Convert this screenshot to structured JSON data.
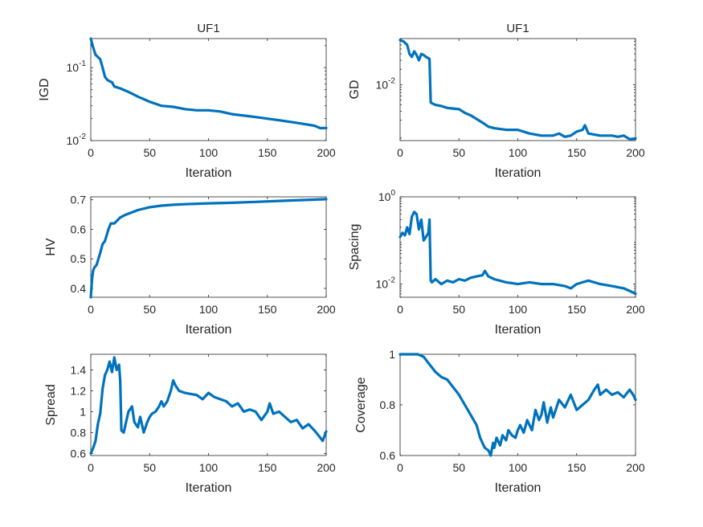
{
  "colors": {
    "series": "#0072bd",
    "axis": "#262626",
    "background": "#ffffff"
  },
  "chart_data": [
    {
      "id": "igd",
      "type": "line",
      "title": "UF1",
      "xlabel": "Iteration",
      "ylabel": "IGD",
      "yscale": "log",
      "xlim": [
        0,
        200
      ],
      "ylim": [
        0.01,
        0.25
      ],
      "xticks": [
        0,
        50,
        100,
        150,
        200
      ],
      "yticks": [
        {
          "v": 0.1,
          "base": "10",
          "exp": "-1"
        },
        {
          "v": 0.01,
          "base": "10",
          "exp": "-2"
        }
      ],
      "series": [
        {
          "name": "IGD",
          "x": [
            0,
            2,
            4,
            6,
            8,
            10,
            12,
            14,
            16,
            18,
            20,
            25,
            30,
            35,
            40,
            45,
            50,
            55,
            60,
            70,
            80,
            90,
            100,
            110,
            120,
            130,
            140,
            150,
            160,
            170,
            180,
            190,
            195,
            200
          ],
          "y": [
            0.25,
            0.19,
            0.15,
            0.14,
            0.13,
            0.1,
            0.075,
            0.068,
            0.065,
            0.063,
            0.055,
            0.052,
            0.048,
            0.044,
            0.04,
            0.037,
            0.034,
            0.032,
            0.03,
            0.029,
            0.027,
            0.026,
            0.026,
            0.025,
            0.023,
            0.022,
            0.021,
            0.02,
            0.019,
            0.018,
            0.017,
            0.016,
            0.0148,
            0.0149
          ]
        }
      ]
    },
    {
      "id": "gd",
      "type": "line",
      "title": "UF1",
      "xlabel": "Iteration",
      "ylabel": "GD",
      "yscale": "log",
      "xlim": [
        0,
        200
      ],
      "ylim": [
        0.0008,
        0.08
      ],
      "xticks": [
        0,
        50,
        100,
        150,
        200
      ],
      "yticks": [
        {
          "v": 0.01,
          "base": "10",
          "exp": "-2"
        }
      ],
      "series": [
        {
          "name": "GD",
          "x": [
            0,
            3,
            6,
            8,
            10,
            12,
            14,
            16,
            18,
            20,
            22,
            25,
            26,
            27,
            30,
            35,
            40,
            45,
            50,
            55,
            60,
            70,
            75,
            80,
            90,
            100,
            110,
            120,
            130,
            135,
            140,
            145,
            150,
            155,
            157,
            160,
            170,
            180,
            185,
            190,
            195,
            200
          ],
          "y": [
            0.075,
            0.07,
            0.06,
            0.04,
            0.035,
            0.045,
            0.038,
            0.03,
            0.04,
            0.038,
            0.035,
            0.032,
            0.0045,
            0.0043,
            0.004,
            0.0038,
            0.0035,
            0.0034,
            0.0033,
            0.0028,
            0.0025,
            0.0018,
            0.0015,
            0.0014,
            0.0013,
            0.0013,
            0.0011,
            0.001,
            0.001,
            0.0011,
            0.00095,
            0.001,
            0.0012,
            0.0013,
            0.0016,
            0.0011,
            0.001,
            0.001,
            0.00095,
            0.001,
            0.00085,
            0.00088
          ]
        }
      ]
    },
    {
      "id": "hv",
      "type": "line",
      "title": "",
      "xlabel": "Iteration",
      "ylabel": "HV",
      "yscale": "linear",
      "xlim": [
        0,
        200
      ],
      "ylim": [
        0.37,
        0.71
      ],
      "xticks": [
        0,
        50,
        100,
        150,
        200
      ],
      "yticks": [
        {
          "v": 0.4,
          "t": "0.4"
        },
        {
          "v": 0.5,
          "t": "0.5"
        },
        {
          "v": 0.6,
          "t": "0.6"
        },
        {
          "v": 0.7,
          "t": "0.7"
        }
      ],
      "series": [
        {
          "name": "HV",
          "x": [
            0,
            1,
            2,
            3,
            5,
            8,
            10,
            12,
            15,
            17,
            20,
            25,
            30,
            40,
            50,
            60,
            70,
            80,
            100,
            120,
            140,
            160,
            180,
            200
          ],
          "y": [
            0.37,
            0.43,
            0.46,
            0.47,
            0.48,
            0.52,
            0.55,
            0.56,
            0.6,
            0.62,
            0.62,
            0.64,
            0.65,
            0.665,
            0.675,
            0.68,
            0.683,
            0.685,
            0.688,
            0.69,
            0.693,
            0.696,
            0.699,
            0.702
          ]
        }
      ]
    },
    {
      "id": "spacing",
      "type": "line",
      "title": "",
      "xlabel": "Iteration",
      "ylabel": "Spacing",
      "yscale": "log",
      "xlim": [
        0,
        200
      ],
      "ylim": [
        0.005,
        1
      ],
      "xticks": [
        0,
        50,
        100,
        150,
        200
      ],
      "yticks": [
        {
          "v": 1,
          "base": "10",
          "exp": "0"
        },
        {
          "v": 0.01,
          "base": "10",
          "exp": "-2"
        }
      ],
      "series": [
        {
          "name": "Spacing",
          "x": [
            0,
            2,
            4,
            6,
            8,
            10,
            12,
            14,
            16,
            18,
            20,
            22,
            24,
            25,
            26,
            27,
            30,
            35,
            40,
            45,
            50,
            55,
            60,
            65,
            70,
            72,
            75,
            80,
            90,
            100,
            110,
            120,
            130,
            140,
            145,
            150,
            155,
            160,
            170,
            180,
            190,
            195,
            200
          ],
          "y": [
            0.12,
            0.15,
            0.13,
            0.2,
            0.14,
            0.35,
            0.45,
            0.4,
            0.18,
            0.3,
            0.1,
            0.12,
            0.15,
            0.3,
            0.012,
            0.011,
            0.013,
            0.01,
            0.012,
            0.011,
            0.013,
            0.012,
            0.014,
            0.015,
            0.016,
            0.02,
            0.015,
            0.013,
            0.011,
            0.01,
            0.011,
            0.01,
            0.01,
            0.009,
            0.008,
            0.01,
            0.011,
            0.012,
            0.01,
            0.009,
            0.008,
            0.007,
            0.006
          ]
        }
      ]
    },
    {
      "id": "spread",
      "type": "line",
      "title": "",
      "xlabel": "Iteration",
      "ylabel": "Spread",
      "yscale": "linear",
      "xlim": [
        0,
        200
      ],
      "ylim": [
        0.58,
        1.55
      ],
      "xticks": [
        0,
        50,
        100,
        150,
        200
      ],
      "yticks": [
        {
          "v": 0.6,
          "t": "0.6"
        },
        {
          "v": 0.8,
          "t": "0.8"
        },
        {
          "v": 1.0,
          "t": "1"
        },
        {
          "v": 1.2,
          "t": "1.2"
        },
        {
          "v": 1.4,
          "t": "1.4"
        }
      ],
      "series": [
        {
          "name": "Spread",
          "x": [
            0,
            2,
            4,
            6,
            8,
            10,
            12,
            14,
            16,
            18,
            20,
            22,
            24,
            25,
            26,
            28,
            30,
            32,
            35,
            37,
            40,
            42,
            45,
            48,
            50,
            52,
            55,
            58,
            60,
            62,
            65,
            68,
            70,
            72,
            75,
            80,
            85,
            90,
            95,
            100,
            105,
            110,
            115,
            120,
            125,
            130,
            135,
            140,
            145,
            150,
            152,
            155,
            160,
            165,
            170,
            175,
            180,
            185,
            190,
            195,
            197,
            200
          ],
          "y": [
            0.6,
            0.65,
            0.72,
            0.88,
            0.98,
            1.22,
            1.35,
            1.4,
            1.48,
            1.38,
            1.52,
            1.4,
            1.45,
            1.3,
            0.82,
            0.8,
            0.9,
            1.0,
            1.05,
            0.9,
            0.85,
            0.95,
            0.8,
            0.9,
            0.95,
            0.98,
            1.0,
            1.05,
            1.1,
            1.05,
            1.1,
            1.2,
            1.3,
            1.25,
            1.2,
            1.18,
            1.17,
            1.16,
            1.12,
            1.18,
            1.14,
            1.12,
            1.1,
            1.05,
            1.08,
            1.0,
            1.02,
            1.0,
            0.92,
            1.0,
            1.08,
            0.98,
            1.0,
            0.95,
            0.9,
            0.92,
            0.84,
            0.88,
            0.82,
            0.75,
            0.72,
            0.81
          ]
        }
      ]
    },
    {
      "id": "coverage",
      "type": "line",
      "title": "",
      "xlabel": "Iteration",
      "ylabel": "Coverage",
      "yscale": "linear",
      "xlim": [
        0,
        200
      ],
      "ylim": [
        0.6,
        1.0
      ],
      "xticks": [
        0,
        50,
        100,
        150,
        200
      ],
      "yticks": [
        {
          "v": 0.6,
          "t": "0.6"
        },
        {
          "v": 0.8,
          "t": "0.8"
        },
        {
          "v": 1.0,
          "t": "1"
        }
      ],
      "series": [
        {
          "name": "Coverage",
          "x": [
            0,
            5,
            10,
            15,
            20,
            25,
            30,
            35,
            40,
            45,
            50,
            55,
            60,
            65,
            68,
            70,
            72,
            75,
            77,
            79,
            80,
            82,
            85,
            87,
            90,
            92,
            95,
            98,
            100,
            102,
            105,
            108,
            110,
            112,
            115,
            118,
            120,
            122,
            125,
            128,
            130,
            135,
            140,
            145,
            150,
            155,
            160,
            165,
            168,
            170,
            175,
            180,
            185,
            190,
            195,
            198,
            200
          ],
          "y": [
            1,
            1,
            1,
            1,
            0.99,
            0.96,
            0.93,
            0.91,
            0.9,
            0.87,
            0.84,
            0.8,
            0.76,
            0.72,
            0.67,
            0.65,
            0.63,
            0.62,
            0.6,
            0.65,
            0.63,
            0.67,
            0.64,
            0.68,
            0.66,
            0.7,
            0.68,
            0.67,
            0.7,
            0.72,
            0.69,
            0.74,
            0.72,
            0.7,
            0.78,
            0.74,
            0.76,
            0.81,
            0.73,
            0.79,
            0.75,
            0.82,
            0.79,
            0.84,
            0.78,
            0.8,
            0.82,
            0.86,
            0.88,
            0.84,
            0.86,
            0.84,
            0.85,
            0.83,
            0.86,
            0.84,
            0.82
          ]
        }
      ]
    }
  ]
}
